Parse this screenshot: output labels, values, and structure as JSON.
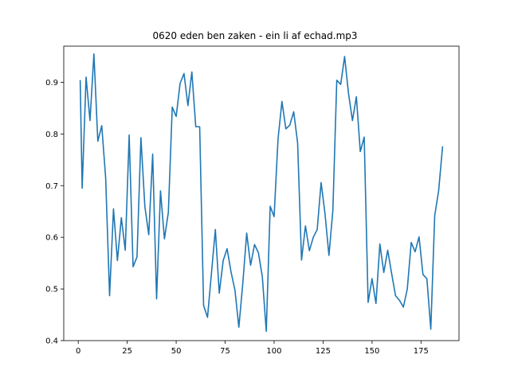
{
  "chart_data": {
    "type": "line",
    "title": "0620 eden ben zaken - ein li af echad.mp3",
    "xlabel": "",
    "ylabel": "",
    "xlim": [
      -7.4,
      194.4
    ],
    "ylim": [
      0.4,
      0.97
    ],
    "grid": false,
    "legend": "none",
    "line_color": "#1f77b4",
    "xticks": [
      0,
      25,
      50,
      75,
      100,
      125,
      150,
      175
    ],
    "yticks": [
      0.4,
      0.5,
      0.6,
      0.7,
      0.8,
      0.9
    ],
    "xtick_labels": [
      "0",
      "25",
      "50",
      "75",
      "100",
      "125",
      "150",
      "175"
    ],
    "ytick_labels": [
      "0.4",
      "0.5",
      "0.6",
      "0.7",
      "0.8",
      "0.9"
    ],
    "series": [
      {
        "x": [
          1,
          2,
          4,
          6,
          8,
          10,
          12,
          14,
          16,
          18,
          20,
          22,
          24,
          26,
          28,
          30,
          32,
          34,
          36,
          38,
          40,
          42,
          44,
          46,
          48,
          50,
          52,
          54,
          56,
          58,
          60,
          62,
          64,
          66,
          68,
          70,
          72,
          74,
          76,
          78,
          80,
          82,
          84,
          86,
          88,
          90,
          92,
          94,
          96,
          98,
          100,
          102,
          104,
          106,
          108,
          110,
          112,
          114,
          116,
          118,
          120,
          122,
          124,
          126,
          128,
          130,
          132,
          134,
          136,
          138,
          140,
          142,
          144,
          146,
          148,
          150,
          152,
          154,
          156,
          158,
          160,
          162,
          164,
          166,
          168,
          170,
          172,
          174,
          176,
          178,
          180,
          182,
          184,
          186
        ],
        "y": [
          0.903,
          0.695,
          0.91,
          0.826,
          0.955,
          0.786,
          0.816,
          0.715,
          0.487,
          0.655,
          0.555,
          0.638,
          0.575,
          0.798,
          0.543,
          0.562,
          0.793,
          0.66,
          0.605,
          0.761,
          0.481,
          0.69,
          0.597,
          0.648,
          0.852,
          0.834,
          0.898,
          0.917,
          0.855,
          0.92,
          0.814,
          0.814,
          0.468,
          0.445,
          0.53,
          0.615,
          0.492,
          0.555,
          0.578,
          0.533,
          0.498,
          0.426,
          0.51,
          0.608,
          0.546,
          0.586,
          0.57,
          0.523,
          0.418,
          0.66,
          0.64,
          0.79,
          0.863,
          0.81,
          0.817,
          0.843,
          0.783,
          0.556,
          0.622,
          0.574,
          0.6,
          0.615,
          0.706,
          0.645,
          0.565,
          0.652,
          0.904,
          0.896,
          0.95,
          0.878,
          0.826,
          0.872,
          0.766,
          0.794,
          0.474,
          0.52,
          0.472,
          0.587,
          0.532,
          0.575,
          0.53,
          0.487,
          0.478,
          0.465,
          0.5,
          0.59,
          0.572,
          0.601,
          0.528,
          0.52,
          0.422,
          0.642,
          0.69,
          0.775
        ]
      }
    ]
  }
}
